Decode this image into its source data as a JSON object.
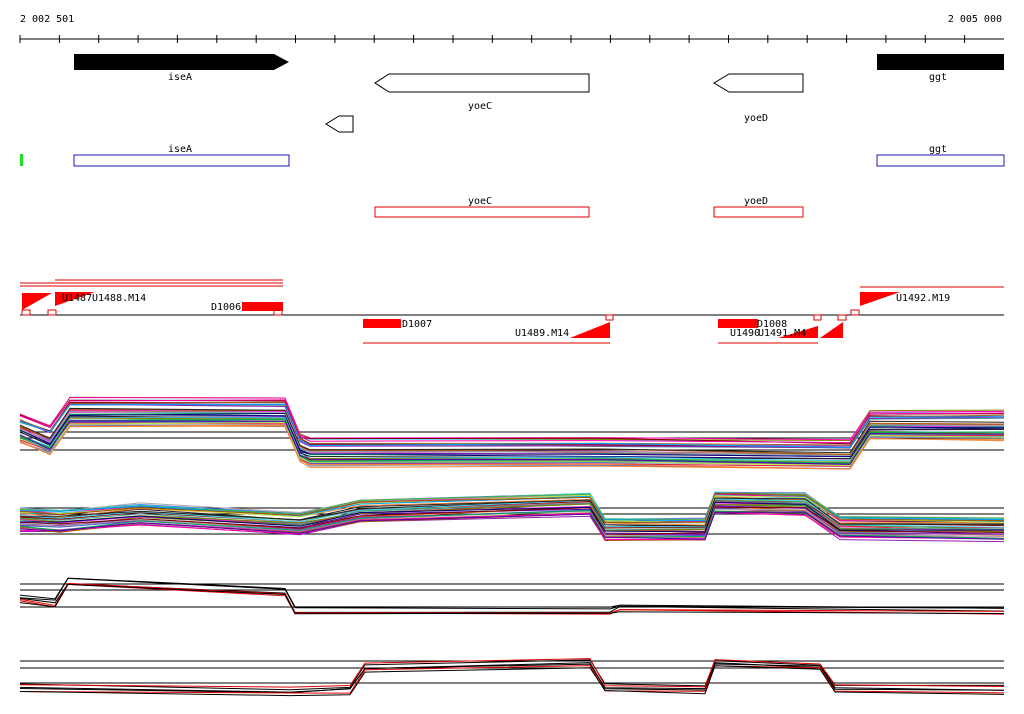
{
  "ruler": {
    "start_label": "2 002 501",
    "end_label": "2 005 000"
  },
  "colors": {
    "gene_fill": "#000000",
    "annotation_blue": "#1a1ab0",
    "annotation_red": "#e00000",
    "marker_green": "#22dd22",
    "segment_red": "#ff0000"
  },
  "genes": [
    {
      "name": "iseA",
      "strand": "+",
      "style": "filled"
    },
    {
      "name": "yoeC",
      "strand": "-",
      "style": "outline"
    },
    {
      "name": "yoeD",
      "strand": "-",
      "style": "outline"
    },
    {
      "name": "ggt",
      "strand": "+",
      "style": "filled"
    },
    {
      "name": "",
      "strand": "-",
      "style": "outline"
    }
  ],
  "annotations": [
    {
      "name": "iseA",
      "color": "blue"
    },
    {
      "name": "ggt",
      "color": "blue"
    },
    {
      "name": "yoeC",
      "color": "red"
    },
    {
      "name": "yoeD",
      "color": "red"
    }
  ],
  "segments": {
    "labels": [
      "U1487",
      "U1488.M14",
      "D1006",
      "D1007",
      "U1489.M14",
      "D1008",
      "U1490",
      "U1491.M4",
      "U1492.M19"
    ]
  },
  "expression_panels": [
    "panel-1",
    "panel-2",
    "panel-3",
    "panel-4"
  ]
}
